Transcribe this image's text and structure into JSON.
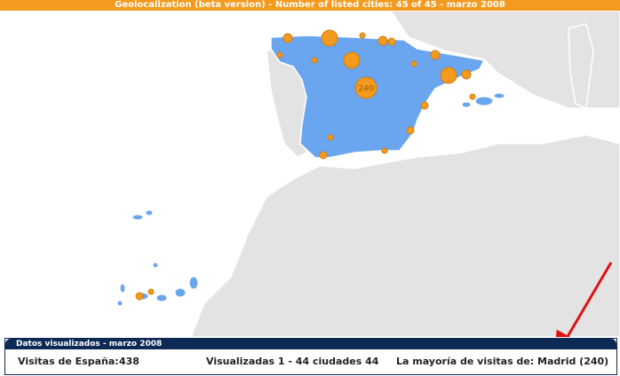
{
  "header": {
    "title": "Geolocalization (beta version) - Number of listed cities: 45 of 45 - marzo 2008"
  },
  "map": {
    "bubble_label": "240"
  },
  "footer": {
    "heading": "Datos visualizados - marzo 2008",
    "visits_label": "Visitas de España:",
    "visits_value": "438",
    "shown": "Visualizadas 1 - 44 ciudades 44",
    "top": "La mayoría de visitas de: Madrid (240)"
  }
}
